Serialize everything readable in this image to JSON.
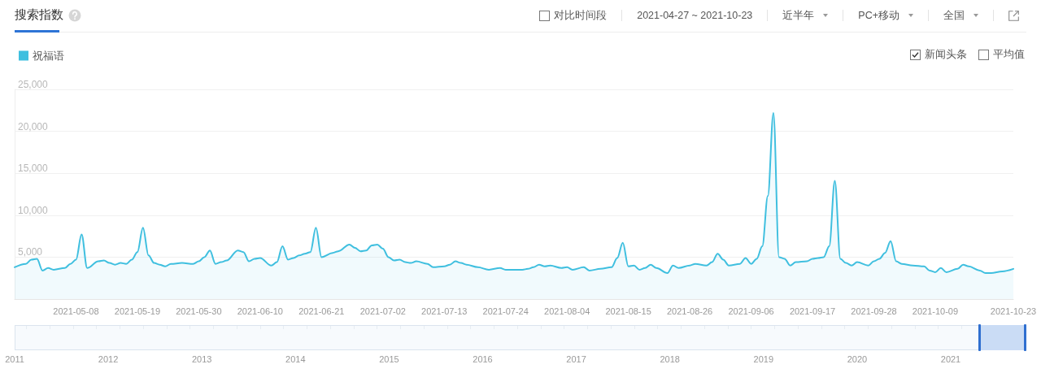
{
  "chart_data": {
    "type": "area",
    "title": "搜索指数",
    "x": [
      "2021-04-27",
      "2021-04-29",
      "2021-04-30",
      "2021-05-01",
      "2021-05-02",
      "2021-05-03",
      "2021-05-04",
      "2021-05-06",
      "2021-05-07",
      "2021-05-08",
      "2021-05-09",
      "2021-05-10",
      "2021-05-12",
      "2021-05-13",
      "2021-05-14",
      "2021-05-15",
      "2021-05-16",
      "2021-05-17",
      "2021-05-18",
      "2021-05-19",
      "2021-05-20",
      "2021-05-21",
      "2021-05-22",
      "2021-05-23",
      "2021-05-24",
      "2021-05-25",
      "2021-05-27",
      "2021-05-29",
      "2021-05-30",
      "2021-05-31",
      "2021-06-01",
      "2021-06-02",
      "2021-06-03",
      "2021-06-04",
      "2021-06-06",
      "2021-06-07",
      "2021-06-08",
      "2021-06-09",
      "2021-06-10",
      "2021-06-12",
      "2021-06-13",
      "2021-06-14",
      "2021-06-15",
      "2021-06-16",
      "2021-06-17",
      "2021-06-18",
      "2021-06-19",
      "2021-06-20",
      "2021-06-21",
      "2021-06-23",
      "2021-06-24",
      "2021-06-26",
      "2021-06-27",
      "2021-06-28",
      "2021-06-29",
      "2021-06-30",
      "2021-07-01",
      "2021-07-02",
      "2021-07-03",
      "2021-07-04",
      "2021-07-05",
      "2021-07-06",
      "2021-07-07",
      "2021-07-08",
      "2021-07-10",
      "2021-07-11",
      "2021-07-13",
      "2021-07-14",
      "2021-07-15",
      "2021-07-16",
      "2021-07-17",
      "2021-07-19",
      "2021-07-21",
      "2021-07-23",
      "2021-07-24",
      "2021-07-27",
      "2021-07-28",
      "2021-07-29",
      "2021-07-30",
      "2021-07-31",
      "2021-08-01",
      "2021-08-03",
      "2021-08-04",
      "2021-08-05",
      "2021-08-07",
      "2021-08-08",
      "2021-08-10",
      "2021-08-12",
      "2021-08-13",
      "2021-08-14",
      "2021-08-15",
      "2021-08-16",
      "2021-08-17",
      "2021-08-18",
      "2021-08-19",
      "2021-08-20",
      "2021-08-22",
      "2021-08-23",
      "2021-08-24",
      "2021-08-26",
      "2021-08-27",
      "2021-08-29",
      "2021-08-30",
      "2021-08-31",
      "2021-09-01",
      "2021-09-02",
      "2021-09-04",
      "2021-09-05",
      "2021-09-06",
      "2021-09-07",
      "2021-09-08",
      "2021-09-09",
      "2021-09-10",
      "2021-09-11",
      "2021-09-12",
      "2021-09-13",
      "2021-09-14",
      "2021-09-16",
      "2021-09-17",
      "2021-09-18",
      "2021-09-19",
      "2021-09-20",
      "2021-09-21",
      "2021-09-22",
      "2021-09-23",
      "2021-09-24",
      "2021-09-25",
      "2021-09-27",
      "2021-09-28",
      "2021-09-29",
      "2021-09-30",
      "2021-10-01",
      "2021-10-02",
      "2021-10-03",
      "2021-10-05",
      "2021-10-07",
      "2021-10-08",
      "2021-10-09",
      "2021-10-10",
      "2021-10-11",
      "2021-10-13",
      "2021-10-14",
      "2021-10-15",
      "2021-10-17",
      "2021-10-18",
      "2021-10-19",
      "2021-10-21",
      "2021-10-23"
    ],
    "series": [
      {
        "name": "祝福语",
        "color": "#3fbfdf",
        "values": [
          3800,
          4200,
          4700,
          4800,
          3400,
          3700,
          3500,
          3700,
          4200,
          4700,
          7700,
          3700,
          4500,
          4600,
          4300,
          4100,
          4300,
          4200,
          4700,
          5600,
          8500,
          5200,
          4300,
          4100,
          3900,
          4200,
          4300,
          4200,
          4500,
          5000,
          5800,
          4200,
          4400,
          4600,
          5800,
          5600,
          4500,
          4800,
          4900,
          4000,
          4400,
          6300,
          4700,
          4900,
          5200,
          5400,
          5600,
          8500,
          5000,
          5500,
          5700,
          6500,
          6100,
          5700,
          5800,
          6400,
          6500,
          6000,
          5000,
          4600,
          4700,
          4400,
          4300,
          4500,
          4200,
          3800,
          3900,
          4100,
          4500,
          4300,
          4100,
          3800,
          3500,
          3700,
          3500,
          3500,
          3600,
          3800,
          4100,
          3900,
          4000,
          3700,
          3800,
          3500,
          3800,
          3400,
          3600,
          3800,
          4900,
          6700,
          3900,
          4000,
          3500,
          3700,
          4100,
          3700,
          3100,
          4000,
          3700,
          4000,
          4200,
          4000,
          4400,
          5400,
          4700,
          4000,
          4200,
          4900,
          4200,
          4800,
          6300,
          12300,
          22200,
          5000,
          4800,
          4000,
          4400,
          4500,
          4800,
          4900,
          5000,
          6300,
          14100,
          4800,
          4300,
          4000,
          4400,
          4000,
          4500,
          4800,
          5500,
          6900,
          4500,
          4200,
          4000,
          3900,
          3400,
          3200,
          3700,
          3200,
          3600,
          4100,
          3900,
          3400,
          3100,
          3100,
          3300,
          3600
        ]
      }
    ],
    "xlim": [
      "2021-04-27",
      "2021-10-23"
    ],
    "xticks": [
      "2021-05-08",
      "2021-05-19",
      "2021-05-30",
      "2021-06-10",
      "2021-06-21",
      "2021-07-02",
      "2021-07-13",
      "2021-07-24",
      "2021-08-04",
      "2021-08-15",
      "2021-08-26",
      "2021-09-06",
      "2021-09-17",
      "2021-09-28",
      "2021-10-09",
      "2021-10-23"
    ],
    "ylim": [
      0,
      25000
    ],
    "yticks": [
      {
        "value": 5000,
        "label": "5,000"
      },
      {
        "value": 10000,
        "label": "10,000"
      },
      {
        "value": 15000,
        "label": "15,000"
      },
      {
        "value": 20000,
        "label": "20,000"
      },
      {
        "value": 25000,
        "label": "25,000"
      }
    ],
    "grid": "y",
    "legend": "top left",
    "annotations": [
      "对比时间段",
      "2021-04-27 ~ 2021-10-23",
      "近半年",
      "PC+移动",
      "全国",
      "新闻头条",
      "平均值",
      "2011",
      "2012",
      "2013",
      "2014",
      "2015",
      "2016",
      "2017",
      "2018",
      "2019",
      "2020",
      "2021"
    ]
  }
}
